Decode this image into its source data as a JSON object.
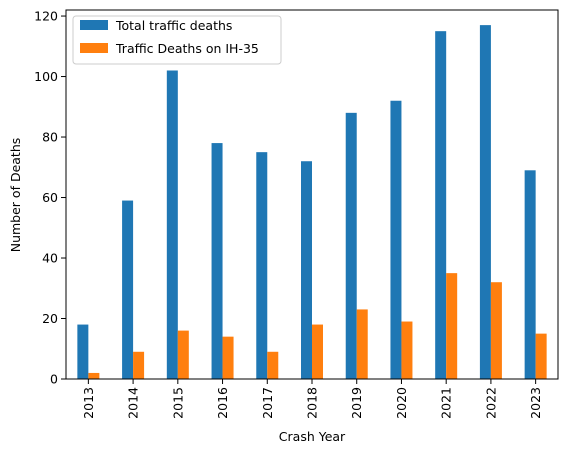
{
  "chart_data": {
    "type": "bar",
    "title": "",
    "xlabel": "Crash Year",
    "ylabel": "Number of Deaths",
    "categories": [
      "2013",
      "2014",
      "2015",
      "2016",
      "2017",
      "2018",
      "2019",
      "2020",
      "2021",
      "2022",
      "2023"
    ],
    "series": [
      {
        "name": "Total traffic deaths",
        "color": "#1f77b4",
        "values": [
          18,
          59,
          102,
          78,
          75,
          72,
          88,
          92,
          115,
          117,
          69
        ]
      },
      {
        "name": "Traffic Deaths on IH-35",
        "color": "#ff7f0e",
        "values": [
          2,
          9,
          16,
          14,
          9,
          18,
          23,
          19,
          35,
          32,
          15
        ]
      }
    ],
    "ylim": [
      0,
      122
    ],
    "yticks": [
      0,
      20,
      40,
      60,
      80,
      100,
      120
    ],
    "grid": false,
    "legend": "top-left"
  }
}
